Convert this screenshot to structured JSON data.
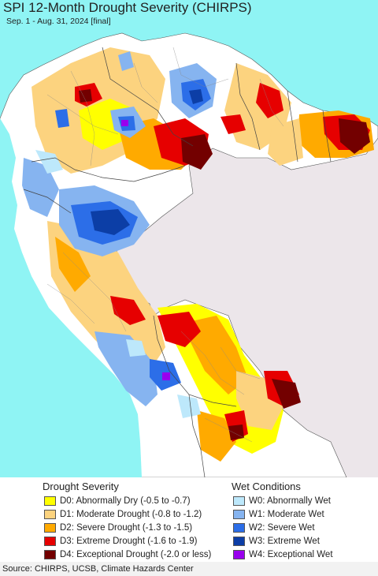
{
  "title": "SPI 12-Month Drought Severity (CHIRPS)",
  "subtitle": "Sep. 1 - Aug. 31, 2024 [final]",
  "colors": {
    "ocean": "#8ff4f4",
    "outside": "#ece6ea",
    "land": "#ffffff",
    "D0": "#ffff00",
    "D1": "#fcd37f",
    "D2": "#ffaa00",
    "D3": "#e60000",
    "D4": "#730000",
    "W0": "#bde8fb",
    "W1": "#86b4f0",
    "W2": "#2c6ee8",
    "W3": "#0c3ea6",
    "W4": "#9900ee"
  },
  "legend": {
    "drought_title": "Drought Severity",
    "wet_title": "Wet Conditions",
    "drought_items": [
      {
        "code": "D0",
        "label": "D0: Abnormally Dry (-0.5 to -0.7)",
        "color": "#ffff00"
      },
      {
        "code": "D1",
        "label": "D1: Moderate Drought (-0.8 to -1.2)",
        "color": "#fcd37f"
      },
      {
        "code": "D2",
        "label": "D2: Severe Drought (-1.3 to -1.5)",
        "color": "#ffaa00"
      },
      {
        "code": "D3",
        "label": "D3: Extreme Drought (-1.6 to -1.9)",
        "color": "#e60000"
      },
      {
        "code": "D4",
        "label": "D4: Exceptional Drought (-2.0 or less)",
        "color": "#730000"
      }
    ],
    "wet_items": [
      {
        "code": "W0",
        "label": "W0: Abnormally Wet",
        "color": "#bde8fb"
      },
      {
        "code": "W1",
        "label": "W1: Moderate Wet",
        "color": "#86b4f0"
      },
      {
        "code": "W2",
        "label": "W2: Severe Wet",
        "color": "#2c6ee8"
      },
      {
        "code": "W3",
        "label": "W3: Extreme Wet",
        "color": "#0c3ea6"
      },
      {
        "code": "W4",
        "label": "W4: Exceptional Wet",
        "color": "#9900ee"
      }
    ]
  },
  "source": "Source: CHIRPS, UCSB, Climate Hazards Center"
}
